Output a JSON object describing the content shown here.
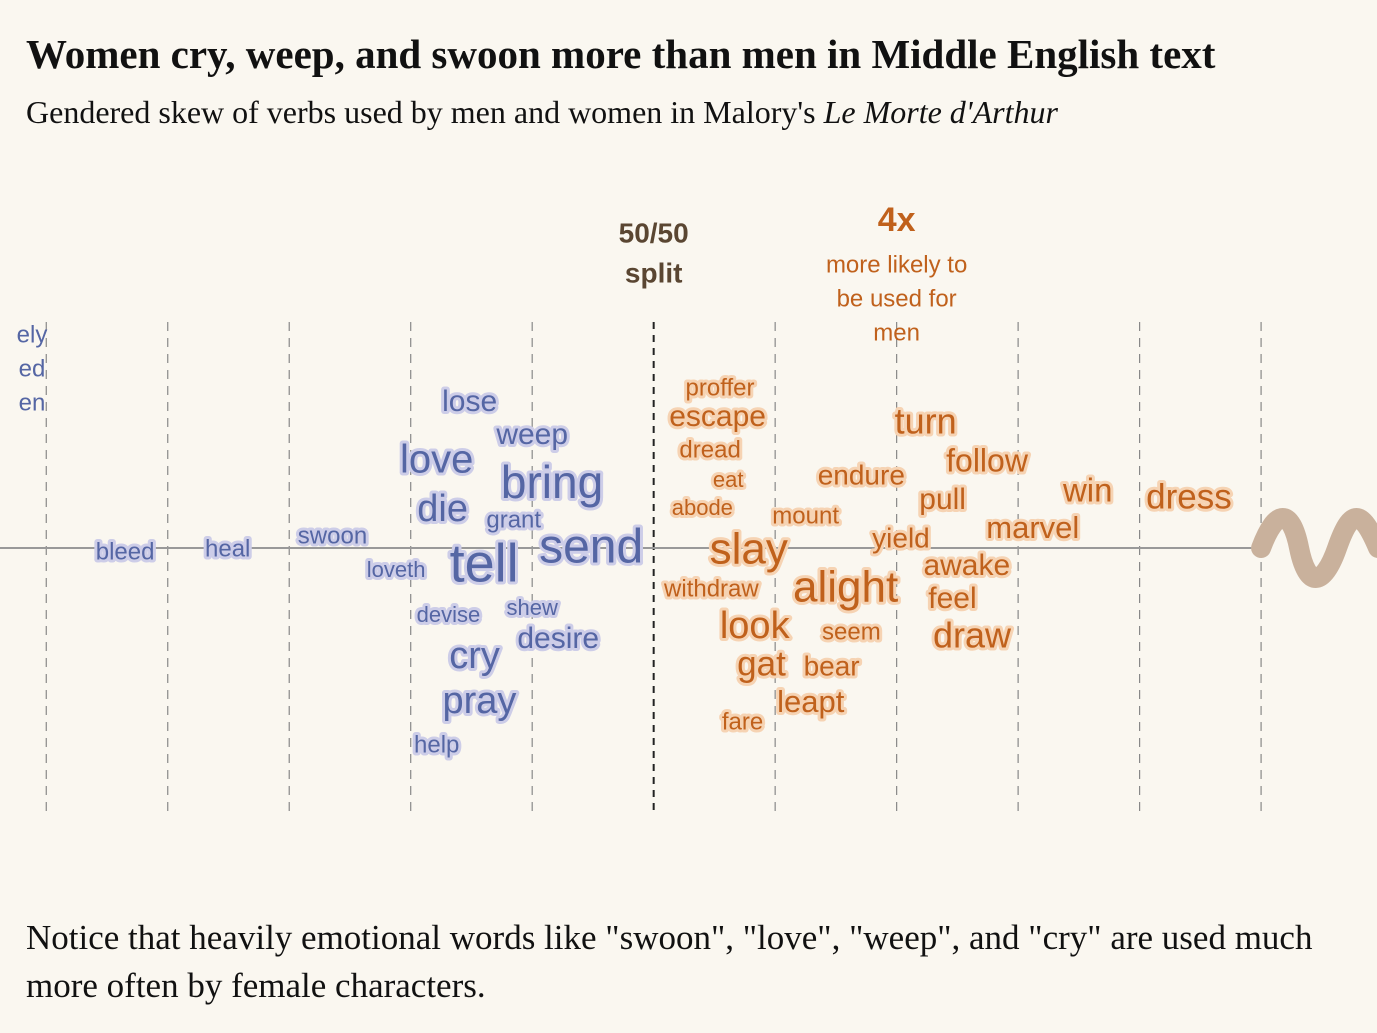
{
  "title": "Women cry, weep, and swoon more than men in Middle English text",
  "subtitle": {
    "text": "Gendered skew of verbs used by men and women in Malory's",
    "italic": "Le Morte d'Arthur"
  },
  "note": "Notice that heavily emotional words like \"swoon\", \"love\", \"weep\", and \"cry\" are used much more often by female characters.",
  "chart_data": {
    "type": "word-skew",
    "xscale": "log",
    "xlim": [
      0.024,
      62
    ],
    "xticks": [
      0.03125,
      0.0625,
      0.125,
      0.25,
      0.5,
      1,
      2,
      4,
      8,
      16,
      32
    ],
    "grid": true,
    "annotations": [
      {
        "x": 1,
        "lines": [
          "50/50",
          "split"
        ],
        "color": "#5a4632"
      },
      {
        "x": 4,
        "label": "4x",
        "lines": [
          "more likely to",
          "be used for",
          "men"
        ],
        "color": "#c0611c"
      },
      {
        "x": 0.02,
        "lines": [
          "ely",
          "ed",
          "en"
        ],
        "color": "#5566a4"
      }
    ],
    "series": [
      {
        "name": "women",
        "color": "#5566a4",
        "halo": "#cdcde8",
        "words": [
          "lose",
          "weep",
          "love",
          "bring",
          "die",
          "grant",
          "swoon",
          "bleed",
          "heal",
          "loveth",
          "tell",
          "send",
          "devise",
          "shew",
          "desire",
          "cry",
          "pray",
          "help"
        ],
        "values": [
          0.35,
          0.5,
          0.29,
          0.56,
          0.3,
          0.45,
          0.16,
          0.049,
          0.088,
          0.23,
          0.38,
          0.7,
          0.31,
          0.5,
          0.58,
          0.36,
          0.37,
          0.29
        ]
      },
      {
        "name": "men",
        "color": "#c0611c",
        "halo": "#f6d3b3",
        "words": [
          "proffer",
          "escape",
          "dread",
          "eat",
          "abode",
          "turn",
          "follow",
          "endure",
          "pull",
          "win",
          "dress",
          "mount",
          "marvel",
          "yield",
          "slay",
          "withdraw",
          "alight",
          "awake",
          "feel",
          "look",
          "seem",
          "draw",
          "gat",
          "bear",
          "leapt",
          "fare"
        ],
        "values": [
          1.46,
          1.44,
          1.38,
          1.53,
          1.32,
          4.72,
          6.7,
          3.27,
          5.2,
          11.9,
          21.2,
          2.38,
          8.7,
          4.1,
          1.72,
          1.39,
          2.99,
          5.97,
          5.5,
          1.78,
          3.09,
          6.15,
          1.85,
          2.76,
          2.45,
          1.66
        ]
      }
    ]
  }
}
